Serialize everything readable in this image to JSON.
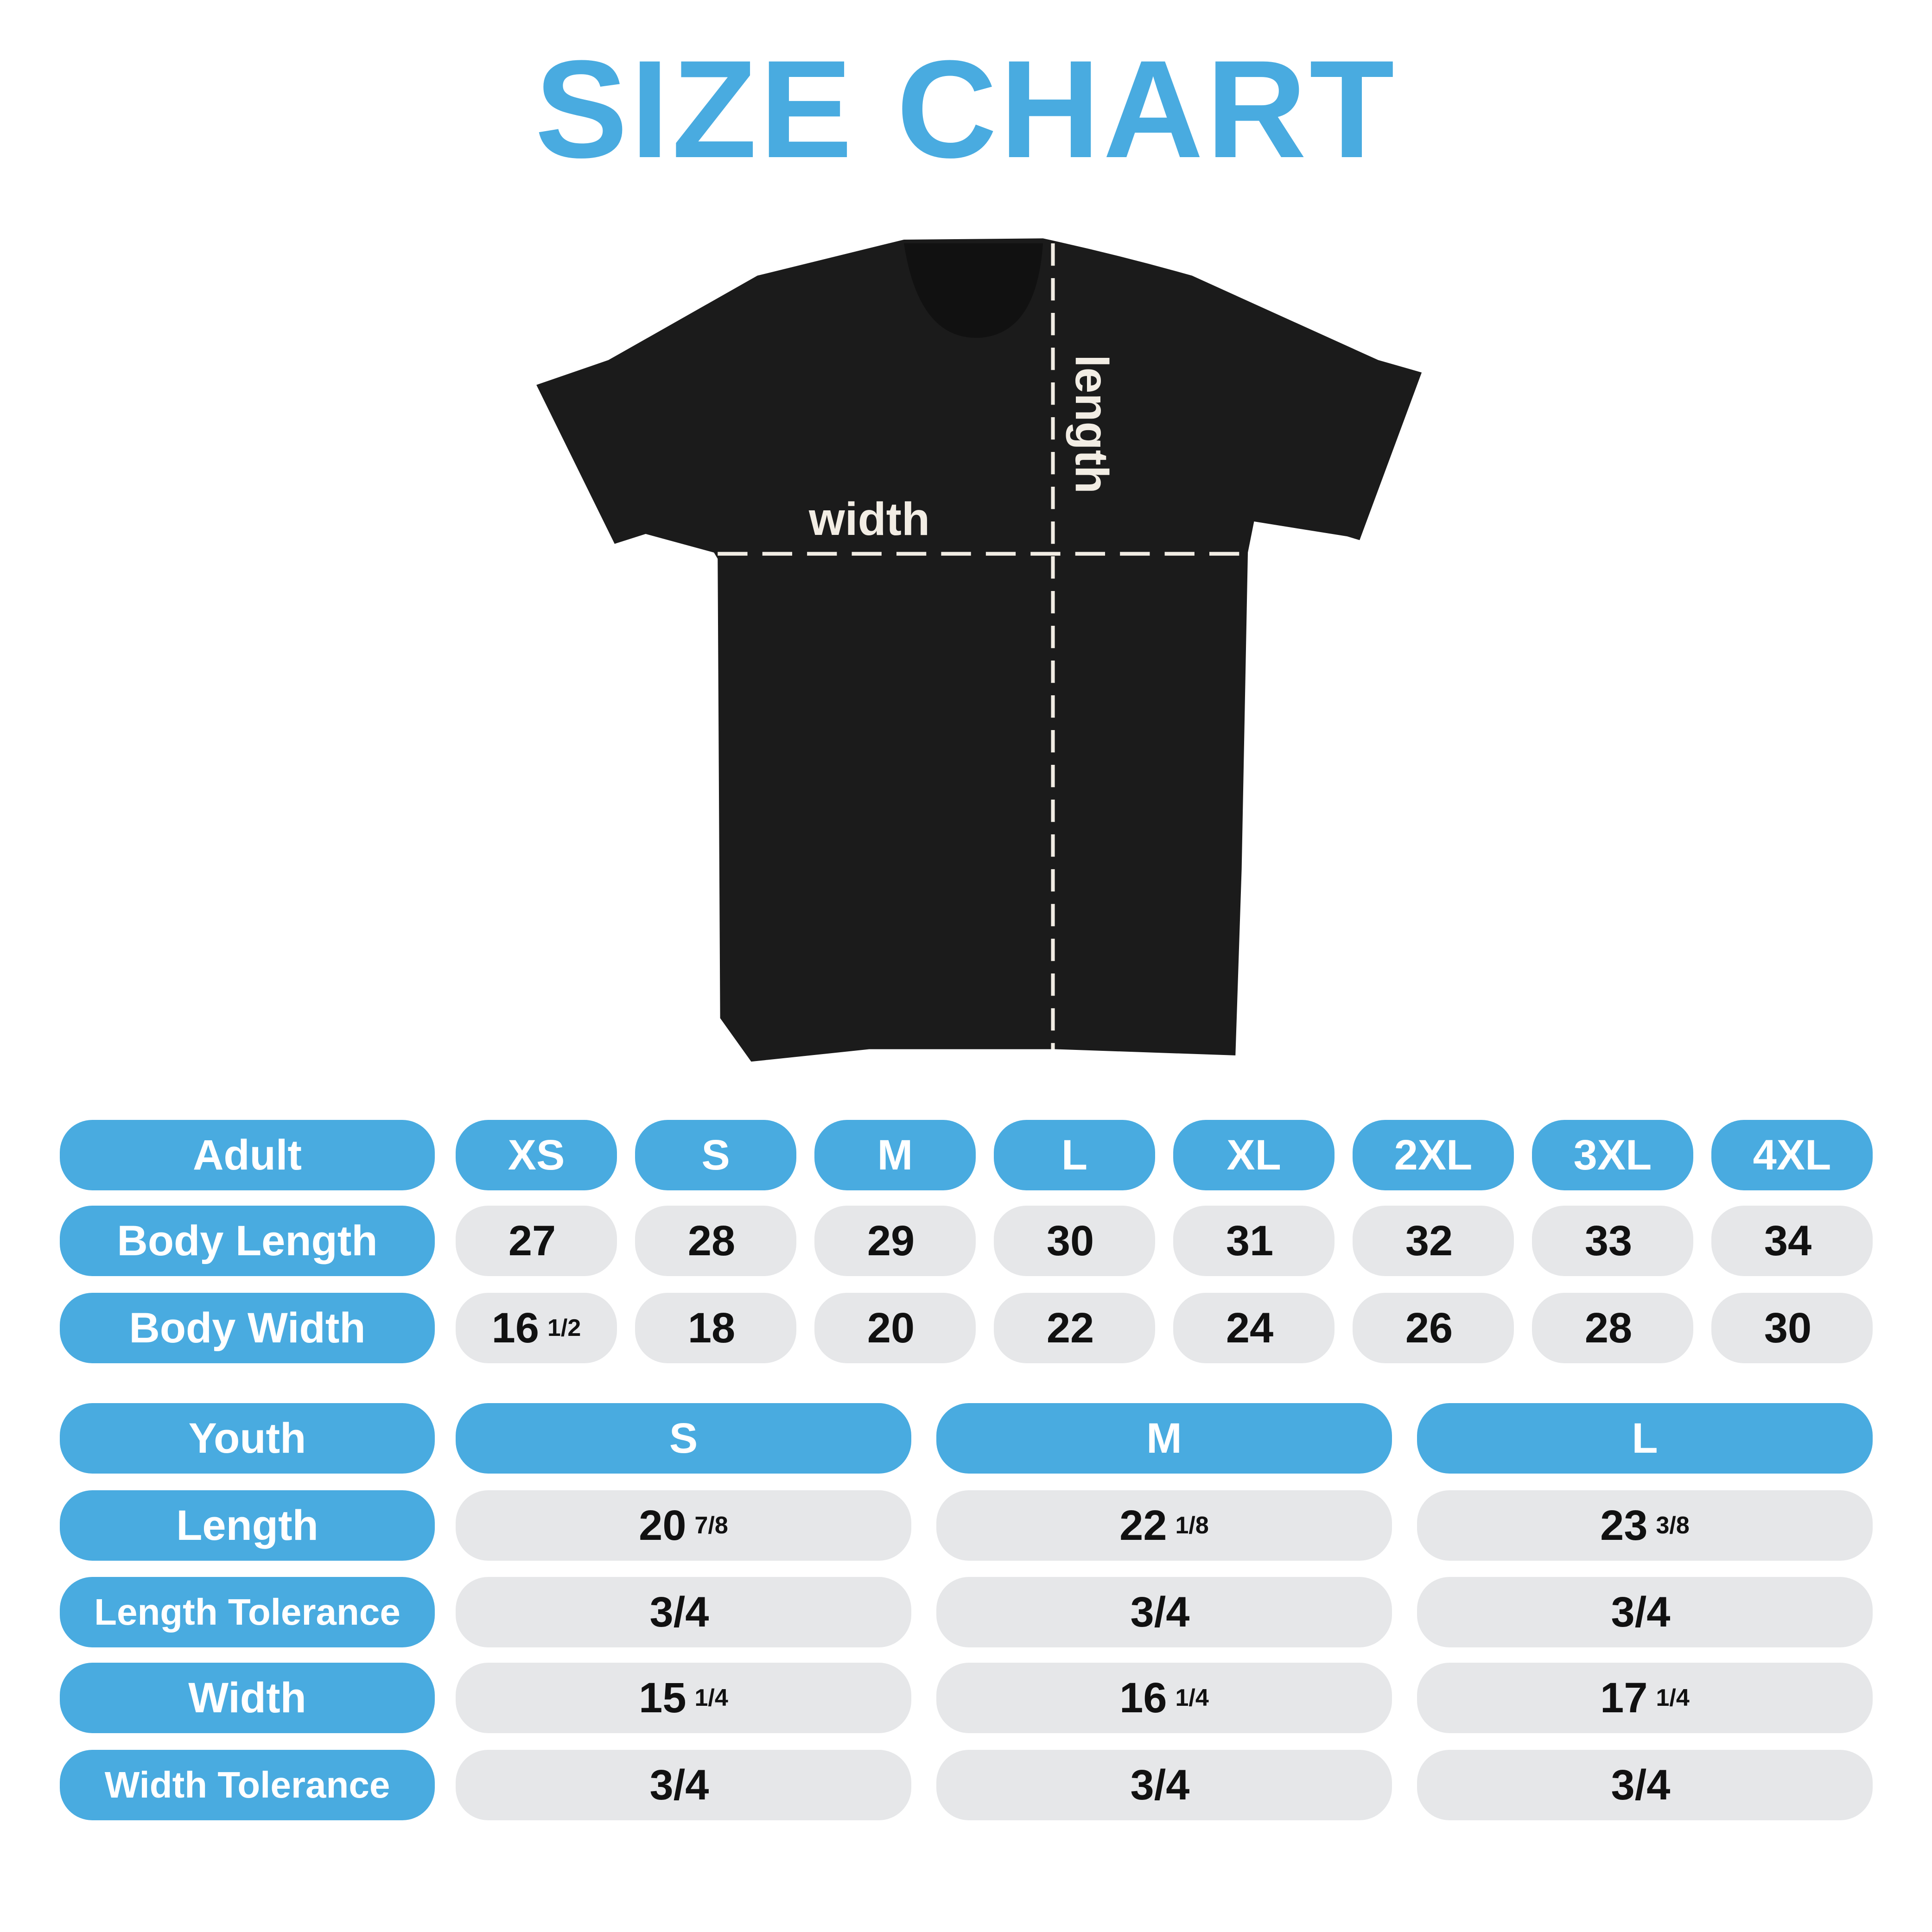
{
  "title": "SIZE CHART",
  "diagram": {
    "width_label": "width",
    "length_label": "length",
    "shirt_color": "#1b1b1b",
    "dash_color": "#f2ede4"
  },
  "colors": {
    "accent": "#49abe0",
    "cell_bg": "#e6e7e9",
    "value_text": "#111111"
  },
  "adult": {
    "header": "Adult",
    "sizes": [
      "XS",
      "S",
      "M",
      "L",
      "XL",
      "2XL",
      "3XL",
      "4XL"
    ],
    "rows": [
      {
        "label": "Body Length",
        "values": [
          {
            "whole": "27",
            "frac": ""
          },
          {
            "whole": "28",
            "frac": ""
          },
          {
            "whole": "29",
            "frac": ""
          },
          {
            "whole": "30",
            "frac": ""
          },
          {
            "whole": "31",
            "frac": ""
          },
          {
            "whole": "32",
            "frac": ""
          },
          {
            "whole": "33",
            "frac": ""
          },
          {
            "whole": "34",
            "frac": ""
          }
        ]
      },
      {
        "label": "Body Width",
        "values": [
          {
            "whole": "16",
            "frac": "1/2"
          },
          {
            "whole": "18",
            "frac": ""
          },
          {
            "whole": "20",
            "frac": ""
          },
          {
            "whole": "22",
            "frac": ""
          },
          {
            "whole": "24",
            "frac": ""
          },
          {
            "whole": "26",
            "frac": ""
          },
          {
            "whole": "28",
            "frac": ""
          },
          {
            "whole": "30",
            "frac": ""
          }
        ]
      }
    ]
  },
  "youth": {
    "header": "Youth",
    "sizes": [
      "S",
      "M",
      "L"
    ],
    "rows": [
      {
        "label": "Length",
        "values": [
          {
            "whole": "20",
            "frac": "7/8"
          },
          {
            "whole": "22",
            "frac": "1/8"
          },
          {
            "whole": "23",
            "frac": "3/8"
          }
        ]
      },
      {
        "label": "Length Tolerance",
        "values": [
          {
            "whole": "3/4",
            "frac": ""
          },
          {
            "whole": "3/4",
            "frac": ""
          },
          {
            "whole": "3/4",
            "frac": ""
          }
        ]
      },
      {
        "label": "Width",
        "values": [
          {
            "whole": "15",
            "frac": "1/4"
          },
          {
            "whole": "16",
            "frac": "1/4"
          },
          {
            "whole": "17",
            "frac": "1/4"
          }
        ]
      },
      {
        "label": "Width Tolerance",
        "values": [
          {
            "whole": "3/4",
            "frac": ""
          },
          {
            "whole": "3/4",
            "frac": ""
          },
          {
            "whole": "3/4",
            "frac": ""
          }
        ]
      }
    ]
  }
}
